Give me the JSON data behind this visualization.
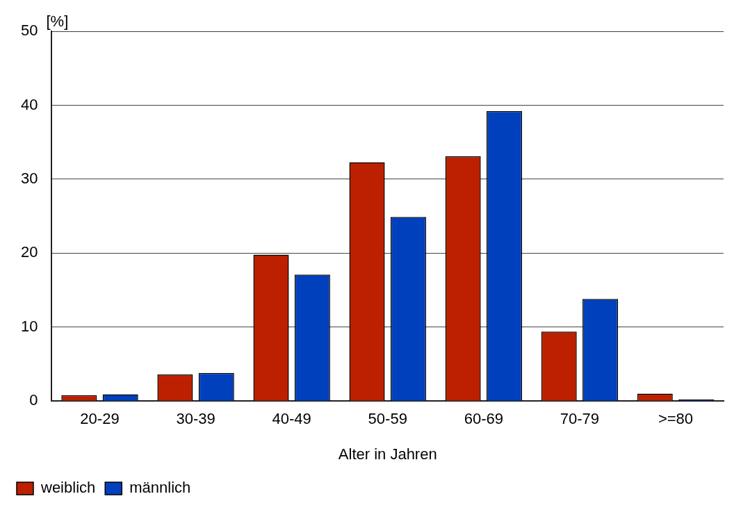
{
  "chart_data": {
    "type": "bar",
    "xlabel": "Alter in Jahren",
    "ylabel": "[%]",
    "categories": [
      "20-29",
      "30-39",
      "40-49",
      "50-59",
      "60-69",
      "70-79",
      ">=80"
    ],
    "series": [
      {
        "name": "weiblich",
        "color": "#bd2000",
        "values": [
          0.8,
          3.6,
          19.8,
          32.3,
          33.1,
          9.4,
          1.0
        ]
      },
      {
        "name": "männlich",
        "color": "#0040bd",
        "values": [
          0.9,
          3.8,
          17.1,
          24.9,
          39.2,
          13.8,
          0.2
        ]
      }
    ],
    "ylim": [
      0,
      50
    ],
    "yticks": [
      0,
      10,
      20,
      30,
      40,
      50
    ],
    "grid": "y",
    "legend": "bottom left"
  }
}
